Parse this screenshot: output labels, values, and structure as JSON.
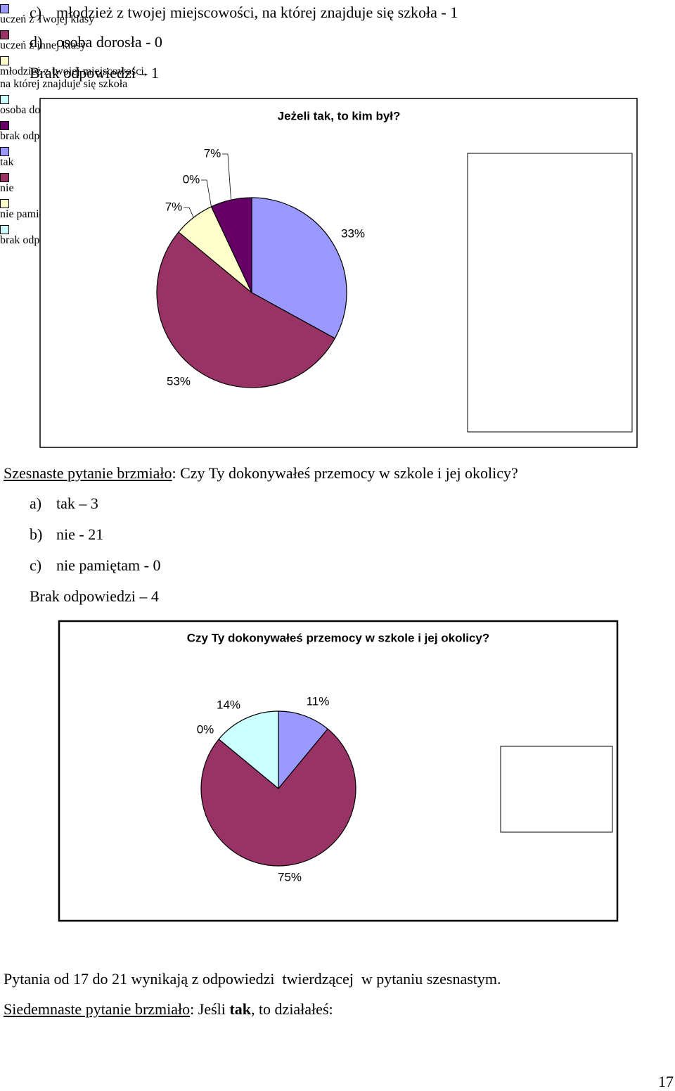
{
  "document": {
    "top_list": [
      {
        "marker": "c)",
        "text": "młodzież z twojej miejscowości, na której znajduje się szkoła - 1"
      },
      {
        "marker": "d)",
        "text": "osoba dorosła - 0"
      }
    ],
    "top_note": "Brak odpowiedzi – 1",
    "question16": {
      "label": "Szesnaste pytanie brzmiało",
      "text": ": Czy Ty dokonywałeś przemocy w szkole i jej okolicy?"
    },
    "answers16": [
      {
        "marker": "a)",
        "text": "tak – 3"
      },
      {
        "marker": "b)",
        "text": "nie - 21"
      },
      {
        "marker": "c)",
        "text": "nie pamiętam - 0"
      }
    ],
    "note16": "Brak odpowiedzi – 4",
    "followup": "Pytania od 17 do 21 wynikają z odpowiedzi  twierdzącej  w pytaniu szesnastym.",
    "question17": {
      "label": "Siedemnaste pytanie brzmiało",
      "pre": ": Jeśli ",
      "bold": "tak",
      "post": ", to działałeś:"
    },
    "page_number": "17"
  },
  "chart_data": [
    {
      "type": "pie",
      "title": "Jeżeli tak, to kim był?",
      "categories": [
        "uczeń z Twojej klasy",
        "uczeń z innej klasy",
        "młodzież z twojej miejscowości, na której znajduje się szkoła",
        "osoba dorosła",
        "brak odpowiedzi"
      ],
      "values": [
        33,
        53,
        7,
        0,
        7
      ],
      "value_labels": [
        "33%",
        "53%",
        "7%",
        "0%",
        "7%"
      ],
      "colors": [
        "#9999ff",
        "#993366",
        "#ffffcc",
        "#ccffff",
        "#660066"
      ],
      "legend": "right"
    },
    {
      "type": "pie",
      "title": "Czy Ty dokonywałeś przemocy w szkole i jej okolicy?",
      "categories": [
        "tak",
        "nie",
        "nie pamiętam",
        "brak odpowiedzi"
      ],
      "values": [
        11,
        75,
        0,
        14
      ],
      "value_labels": [
        "11%",
        "75%",
        "0%",
        "14%"
      ],
      "colors": [
        "#9999ff",
        "#993366",
        "#ffffcc",
        "#ccffff"
      ],
      "legend": "right"
    }
  ]
}
